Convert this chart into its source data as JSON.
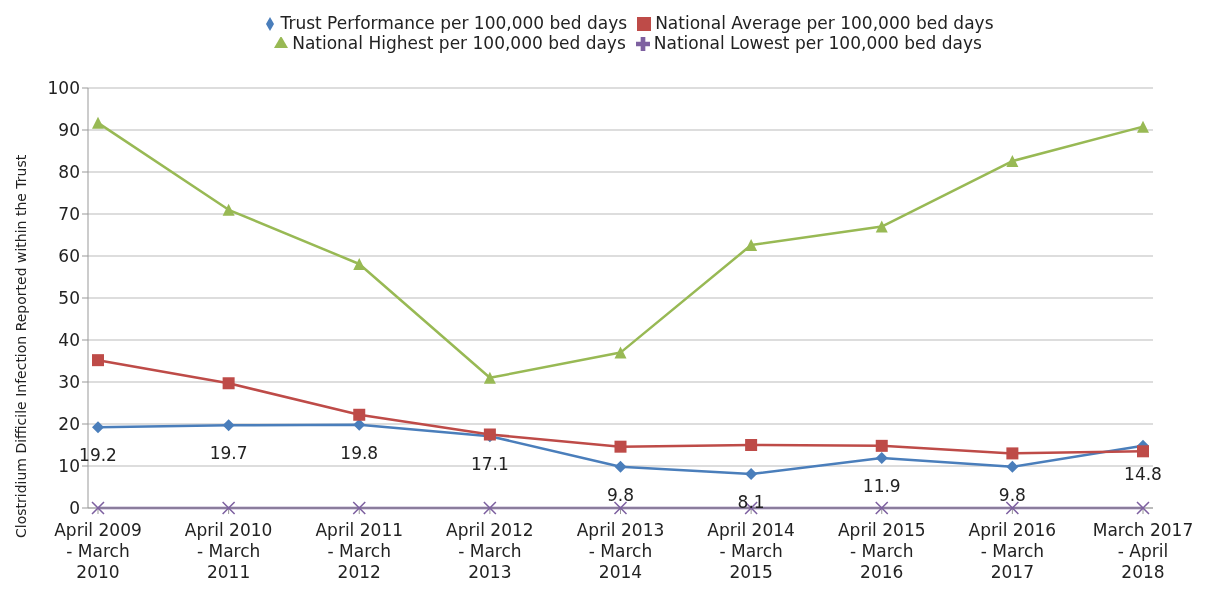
{
  "chart_data": {
    "type": "line",
    "ylabel": "Clostridium Difficile Infection Reported within the Trust",
    "categories": [
      "April 2009 - March 2010",
      "April 2010 - March 2011",
      "April 2011 - March 2012",
      "April 2012 - March 2013",
      "April 2013 - March 2014",
      "April 2014 - March 2015",
      "April 2015 - March 2016",
      "April 2016 - March 2017",
      "March 2017 - April 2018"
    ],
    "series": [
      {
        "name": "Trust Performance per 100,000 bed days",
        "color": "#4a7ebb",
        "marker": "diamond",
        "values": [
          19.2,
          19.7,
          19.8,
          17.1,
          9.8,
          8.1,
          11.9,
          9.8,
          14.8
        ],
        "value_labels": [
          "19.2",
          "19.7",
          "19.8",
          "17.1",
          "9.8",
          "8.1",
          "11.9",
          "9.8",
          "14.8"
        ]
      },
      {
        "name": "National Average per 100,000 bed days",
        "color": "#be4b48",
        "marker": "square",
        "values": [
          35.2,
          29.7,
          22.2,
          17.5,
          14.6,
          15.0,
          14.8,
          13.0,
          13.5
        ]
      },
      {
        "name": "National Highest per 100,000 bed days",
        "color": "#98b954",
        "marker": "triangle",
        "values": [
          91.7,
          71.0,
          58.1,
          31.0,
          37.0,
          62.6,
          67.0,
          82.6,
          90.8
        ]
      },
      {
        "name": "National Lowest per 100,000 bed days",
        "color": "#7d60a0",
        "marker": "cross",
        "values": [
          0,
          0,
          0,
          0,
          0,
          0,
          0,
          0,
          0
        ]
      }
    ],
    "ylim": [
      0,
      100
    ],
    "yticks": [
      0,
      10,
      20,
      30,
      40,
      50,
      60,
      70,
      80,
      90,
      100
    ],
    "grid": "y",
    "legend": "top",
    "line_style": "solid"
  }
}
